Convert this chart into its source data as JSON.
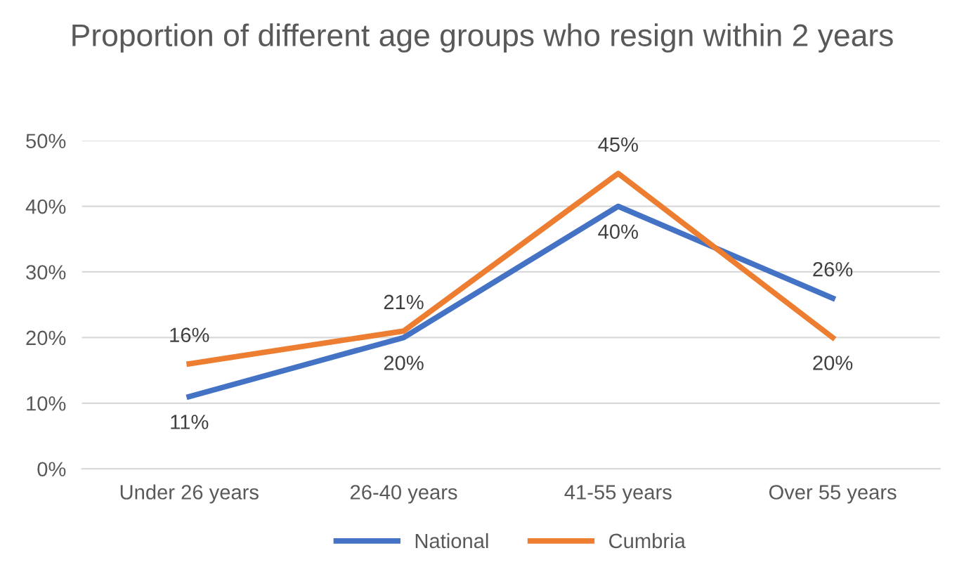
{
  "chart_data": {
    "type": "line",
    "title": "Proportion of different age groups who resign within 2 years",
    "categories": [
      "Under 26 years",
      "26-40 years",
      "41-55 years",
      "Over 55 years"
    ],
    "series": [
      {
        "name": "National",
        "color": "#4472c4",
        "values": [
          11,
          20,
          40,
          26
        ],
        "value_labels": [
          "11%",
          "20%",
          "40%",
          "26%"
        ]
      },
      {
        "name": "Cumbria",
        "color": "#ed7d31",
        "values": [
          16,
          21,
          45,
          20
        ],
        "value_labels": [
          "16%",
          "21%",
          "45%",
          "20%"
        ]
      }
    ],
    "ylim": [
      0,
      50
    ],
    "yticks": [
      {
        "value": 0,
        "label": "0%"
      },
      {
        "value": 10,
        "label": "10%"
      },
      {
        "value": 20,
        "label": "20%"
      },
      {
        "value": 30,
        "label": "30%"
      },
      {
        "value": 40,
        "label": "40%"
      },
      {
        "value": 50,
        "label": "50%"
      }
    ],
    "grid": "y",
    "legend": "bottom",
    "marker": "none",
    "line_style": "solid"
  }
}
